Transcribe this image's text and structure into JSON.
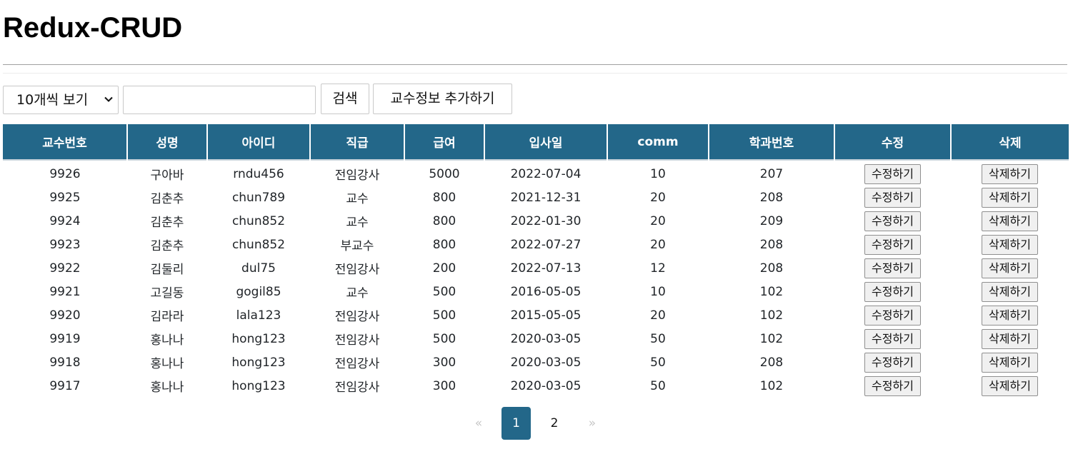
{
  "header": {
    "title": "Redux-CRUD"
  },
  "toolbar": {
    "page_size_label": "10개씩 보기",
    "search_value": "",
    "search_label": "검색",
    "add_label": "교수정보 추가하기"
  },
  "table": {
    "columns": [
      "교수번호",
      "성명",
      "아이디",
      "직급",
      "급여",
      "입사일",
      "comm",
      "학과번호",
      "수정",
      "삭제"
    ],
    "edit_label": "수정하기",
    "delete_label": "삭제하기",
    "rows": [
      [
        "9926",
        "구아바",
        "rndu456",
        "전임강사",
        "5000",
        "2022-07-04",
        "10",
        "207"
      ],
      [
        "9925",
        "김춘추",
        "chun789",
        "교수",
        "800",
        "2021-12-31",
        "20",
        "208"
      ],
      [
        "9924",
        "김춘추",
        "chun852",
        "교수",
        "800",
        "2022-01-30",
        "20",
        "209"
      ],
      [
        "9923",
        "김춘추",
        "chun852",
        "부교수",
        "800",
        "2022-07-27",
        "20",
        "208"
      ],
      [
        "9922",
        "김둘리",
        "dul75",
        "전임강사",
        "200",
        "2022-07-13",
        "12",
        "208"
      ],
      [
        "9921",
        "고길동",
        "gogil85",
        "교수",
        "500",
        "2016-05-05",
        "10",
        "102"
      ],
      [
        "9920",
        "김라라",
        "lala123",
        "전임강사",
        "500",
        "2015-05-05",
        "20",
        "102"
      ],
      [
        "9919",
        "홍나나",
        "hong123",
        "전임강사",
        "500",
        "2020-03-05",
        "50",
        "102"
      ],
      [
        "9918",
        "홍나나",
        "hong123",
        "전임강사",
        "300",
        "2020-03-05",
        "50",
        "208"
      ],
      [
        "9917",
        "홍나나",
        "hong123",
        "전임강사",
        "300",
        "2020-03-05",
        "50",
        "102"
      ]
    ]
  },
  "pagination": {
    "prev": "«",
    "pages": [
      "1",
      "2"
    ],
    "current": "1",
    "next": "»"
  },
  "colors": {
    "accent": "#236789"
  }
}
